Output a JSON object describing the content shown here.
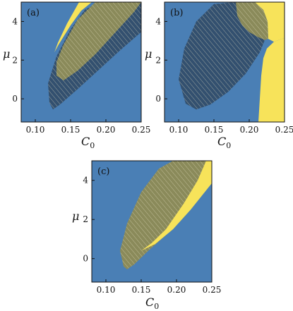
{
  "colors": {
    "background": "#4a7fb5",
    "region_yellow": "#f7e35a",
    "region_overlap": "#8a8a5a",
    "hatch": "#e9e6c8",
    "frame": "#111111"
  },
  "chart_data": [
    {
      "type": "area",
      "panel_label": "(a)",
      "xlabel": "C",
      "xlabel_sub": "0",
      "ylabel": "μ",
      "xlim": [
        0.08,
        0.25
      ],
      "ylim": [
        -1.2,
        5
      ],
      "xticks": [
        0.1,
        0.15,
        0.2,
        0.25
      ],
      "xtick_labels": [
        "0.10",
        "0.15",
        "0.20",
        "0.25"
      ],
      "yticks": [
        0,
        2,
        4
      ],
      "ytick_labels": [
        "0",
        "2",
        "4"
      ],
      "regions": {
        "dark_ellipse": [
          [
            0.12,
            -0.2
          ],
          [
            0.125,
            -0.55
          ],
          [
            0.135,
            -0.3
          ],
          [
            0.16,
            0.5
          ],
          [
            0.19,
            1.5
          ],
          [
            0.22,
            2.5
          ],
          [
            0.25,
            3.45
          ],
          [
            0.25,
            5.0
          ],
          [
            0.22,
            5.0
          ],
          [
            0.19,
            5.0
          ],
          [
            0.17,
            4.6
          ],
          [
            0.15,
            3.6
          ],
          [
            0.13,
            2.2
          ],
          [
            0.118,
            0.8
          ]
        ],
        "hatched_ellipse": [
          [
            0.13,
            1.2
          ],
          [
            0.14,
            0.95
          ],
          [
            0.16,
            1.45
          ],
          [
            0.185,
            2.3
          ],
          [
            0.21,
            3.3
          ],
          [
            0.24,
            4.5
          ],
          [
            0.25,
            5.0
          ],
          [
            0.185,
            5.0
          ],
          [
            0.16,
            4.1
          ],
          [
            0.14,
            2.8
          ],
          [
            0.13,
            1.9
          ]
        ],
        "yellow_band": [
          [
            0.127,
            2.4
          ],
          [
            0.133,
            2.8
          ],
          [
            0.15,
            3.8
          ],
          [
            0.165,
            4.55
          ],
          [
            0.18,
            5.0
          ],
          [
            0.162,
            5.0
          ],
          [
            0.145,
            3.9
          ],
          [
            0.132,
            2.9
          ]
        ]
      }
    },
    {
      "type": "area",
      "panel_label": "(b)",
      "xlabel": "C",
      "xlabel_sub": "0",
      "ylabel": "μ",
      "xlim": [
        0.08,
        0.25
      ],
      "ylim": [
        -1.2,
        5
      ],
      "xticks": [
        0.1,
        0.15,
        0.2,
        0.25
      ],
      "xtick_labels": [
        "0.10",
        "0.15",
        "0.20",
        "0.25"
      ],
      "yticks": [
        0,
        2,
        4
      ],
      "ytick_labels": [
        "0",
        "2",
        "4"
      ],
      "regions": {
        "dark_ellipse": [
          [
            0.1,
            1.0
          ],
          [
            0.11,
            -0.25
          ],
          [
            0.125,
            -0.55
          ],
          [
            0.145,
            -0.3
          ],
          [
            0.17,
            0.35
          ],
          [
            0.195,
            1.3
          ],
          [
            0.215,
            2.4
          ],
          [
            0.225,
            3.3
          ],
          [
            0.22,
            4.2
          ],
          [
            0.205,
            4.8
          ],
          [
            0.18,
            5.0
          ],
          [
            0.15,
            4.9
          ],
          [
            0.125,
            4.0
          ],
          [
            0.108,
            2.6
          ]
        ],
        "hatched_overlap": [
          [
            0.181,
            5.0
          ],
          [
            0.183,
            4.3
          ],
          [
            0.19,
            3.8
          ],
          [
            0.2,
            3.45
          ],
          [
            0.212,
            3.2
          ],
          [
            0.222,
            3.05
          ],
          [
            0.227,
            3.1
          ],
          [
            0.226,
            4.0
          ],
          [
            0.22,
            4.6
          ],
          [
            0.208,
            5.0
          ]
        ],
        "yellow_right": [
          [
            0.213,
            -1.2
          ],
          [
            0.215,
            0.0
          ],
          [
            0.217,
            1.2
          ],
          [
            0.22,
            2.1
          ],
          [
            0.225,
            2.6
          ],
          [
            0.235,
            2.95
          ],
          [
            0.25,
            3.15
          ],
          [
            0.25,
            -1.2
          ]
        ],
        "yellow_top": [
          [
            0.208,
            5.0
          ],
          [
            0.22,
            4.6
          ],
          [
            0.226,
            4.0
          ],
          [
            0.227,
            3.1
          ],
          [
            0.235,
            2.95
          ],
          [
            0.25,
            3.15
          ],
          [
            0.25,
            5.0
          ]
        ]
      }
    },
    {
      "type": "area",
      "panel_label": "(c)",
      "xlabel": "C",
      "xlabel_sub": "0",
      "ylabel": "μ",
      "xlim": [
        0.08,
        0.25
      ],
      "ylim": [
        -1.2,
        5
      ],
      "xticks": [
        0.1,
        0.15,
        0.2,
        0.25
      ],
      "xtick_labels": [
        "0.10",
        "0.15",
        "0.20",
        "0.25"
      ],
      "yticks": [
        0,
        2,
        4
      ],
      "ytick_labels": [
        "0",
        "2",
        "4"
      ],
      "regions": {
        "hatched_ellipse": [
          [
            0.125,
            -0.4
          ],
          [
            0.13,
            -0.55
          ],
          [
            0.14,
            -0.3
          ],
          [
            0.16,
            0.4
          ],
          [
            0.185,
            1.2
          ],
          [
            0.21,
            2.1
          ],
          [
            0.235,
            3.2
          ],
          [
            0.25,
            4.0
          ],
          [
            0.25,
            5.0
          ],
          [
            0.195,
            5.0
          ],
          [
            0.175,
            4.6
          ],
          [
            0.15,
            3.4
          ],
          [
            0.13,
            1.8
          ],
          [
            0.12,
            0.4
          ]
        ],
        "yellow_band": [
          [
            0.15,
            0.4
          ],
          [
            0.17,
            0.75
          ],
          [
            0.195,
            1.5
          ],
          [
            0.22,
            2.5
          ],
          [
            0.24,
            3.4
          ],
          [
            0.25,
            3.85
          ],
          [
            0.25,
            5.0
          ],
          [
            0.242,
            5.0
          ],
          [
            0.23,
            4.0
          ],
          [
            0.21,
            2.8
          ],
          [
            0.185,
            1.5
          ],
          [
            0.165,
            0.8
          ]
        ]
      }
    }
  ]
}
